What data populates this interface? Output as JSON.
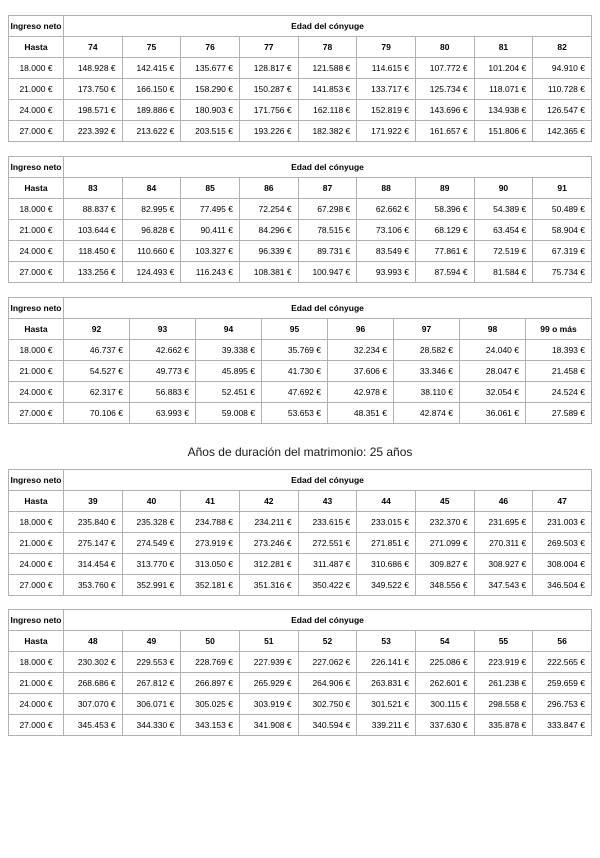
{
  "heading": {
    "text": "Años de duración del matrimonio: 25 años"
  },
  "table_labels": {
    "income_col_header": "Ingreso neto",
    "age_group_header": "Edad del cónyuge",
    "income_row_header": "Hasta"
  },
  "colors": {
    "border": "#b0b0b0",
    "text": "#000000",
    "background": "#ffffff"
  },
  "tables": [
    {
      "id": "ages-74-82",
      "ages": [
        "74",
        "75",
        "76",
        "77",
        "78",
        "79",
        "80",
        "81",
        "82"
      ],
      "rows": [
        {
          "income": "18.000 €",
          "values": [
            "148.928 €",
            "142.415 €",
            "135.677 €",
            "128.817 €",
            "121.588 €",
            "114.615 €",
            "107.772 €",
            "101.204 €",
            "94.910 €"
          ]
        },
        {
          "income": "21.000 €",
          "values": [
            "173.750 €",
            "166.150 €",
            "158.290 €",
            "150.287 €",
            "141.853 €",
            "133.717 €",
            "125.734 €",
            "118.071 €",
            "110.728 €"
          ]
        },
        {
          "income": "24.000 €",
          "values": [
            "198.571 €",
            "189.886 €",
            "180.903 €",
            "171.756 €",
            "162.118 €",
            "152.819 €",
            "143.696 €",
            "134.938 €",
            "126.547 €"
          ]
        },
        {
          "income": "27.000 €",
          "values": [
            "223.392 €",
            "213.622 €",
            "203.515 €",
            "193.226 €",
            "182.382 €",
            "171.922 €",
            "161.657 €",
            "151.806 €",
            "142.365 €"
          ]
        }
      ]
    },
    {
      "id": "ages-83-91",
      "ages": [
        "83",
        "84",
        "85",
        "86",
        "87",
        "88",
        "89",
        "90",
        "91"
      ],
      "rows": [
        {
          "income": "18.000 €",
          "values": [
            "88.837 €",
            "82.995 €",
            "77.495 €",
            "72.254 €",
            "67.298 €",
            "62.662 €",
            "58.396 €",
            "54.389 €",
            "50.489 €"
          ]
        },
        {
          "income": "21.000 €",
          "values": [
            "103.644 €",
            "96.828 €",
            "90.411 €",
            "84.296 €",
            "78.515 €",
            "73.106 €",
            "68.129 €",
            "63.454 €",
            "58.904 €"
          ]
        },
        {
          "income": "24.000 €",
          "values": [
            "118.450 €",
            "110.660 €",
            "103.327 €",
            "96.339 €",
            "89.731 €",
            "83.549 €",
            "77.861 €",
            "72.519 €",
            "67.319 €"
          ]
        },
        {
          "income": "27.000 €",
          "values": [
            "133.256 €",
            "124.493 €",
            "116.243 €",
            "108.381 €",
            "100.947 €",
            "93.993 €",
            "87.594 €",
            "81.584 €",
            "75.734 €"
          ]
        }
      ]
    },
    {
      "id": "ages-92-99",
      "ages": [
        "92",
        "93",
        "94",
        "95",
        "96",
        "97",
        "98",
        "99 o más"
      ],
      "rows": [
        {
          "income": "18.000 €",
          "values": [
            "46.737 €",
            "42.662 €",
            "39.338 €",
            "35.769 €",
            "32.234 €",
            "28.582 €",
            "24.040 €",
            "18.393 €"
          ]
        },
        {
          "income": "21.000 €",
          "values": [
            "54.527 €",
            "49.773 €",
            "45.895 €",
            "41.730 €",
            "37.606 €",
            "33.346 €",
            "28.047 €",
            "21.458 €"
          ]
        },
        {
          "income": "24.000 €",
          "values": [
            "62.317 €",
            "56.883 €",
            "52.451 €",
            "47.692 €",
            "42.978 €",
            "38.110 €",
            "32.054 €",
            "24.524 €"
          ]
        },
        {
          "income": "27.000 €",
          "values": [
            "70.106 €",
            "63.993 €",
            "59.008 €",
            "53.653 €",
            "48.351 €",
            "42.874 €",
            "36.061 €",
            "27.589 €"
          ]
        }
      ]
    },
    {
      "id": "ages-39-47",
      "ages": [
        "39",
        "40",
        "41",
        "42",
        "43",
        "44",
        "45",
        "46",
        "47"
      ],
      "rows": [
        {
          "income": "18.000 €",
          "values": [
            "235.840 €",
            "235.328 €",
            "234.788 €",
            "234.211 €",
            "233.615 €",
            "233.015 €",
            "232.370 €",
            "231.695 €",
            "231.003 €"
          ]
        },
        {
          "income": "21.000 €",
          "values": [
            "275.147 €",
            "274.549 €",
            "273.919 €",
            "273.246 €",
            "272.551 €",
            "271.851 €",
            "271.099 €",
            "270.311 €",
            "269.503 €"
          ]
        },
        {
          "income": "24.000 €",
          "values": [
            "314.454 €",
            "313.770 €",
            "313.050 €",
            "312.281 €",
            "311.487 €",
            "310.686 €",
            "309.827 €",
            "308.927 €",
            "308.004 €"
          ]
        },
        {
          "income": "27.000 €",
          "values": [
            "353.760 €",
            "352.991 €",
            "352.181 €",
            "351.316 €",
            "350.422 €",
            "349.522 €",
            "348.556 €",
            "347.543 €",
            "346.504 €"
          ]
        }
      ]
    },
    {
      "id": "ages-48-56",
      "ages": [
        "48",
        "49",
        "50",
        "51",
        "52",
        "53",
        "54",
        "55",
        "56"
      ],
      "rows": [
        {
          "income": "18.000 €",
          "values": [
            "230.302 €",
            "229.553 €",
            "228.769 €",
            "227.939 €",
            "227.062 €",
            "226.141 €",
            "225.086 €",
            "223.919 €",
            "222.565 €"
          ]
        },
        {
          "income": "21.000 €",
          "values": [
            "268.686 €",
            "267.812 €",
            "266.897 €",
            "265.929 €",
            "264.906 €",
            "263.831 €",
            "262.601 €",
            "261.238 €",
            "259.659 €"
          ]
        },
        {
          "income": "24.000 €",
          "values": [
            "307.070 €",
            "306.071 €",
            "305.025 €",
            "303.919 €",
            "302.750 €",
            "301.521 €",
            "300.115 €",
            "298.558 €",
            "296.753 €"
          ]
        },
        {
          "income": "27.000 €",
          "values": [
            "345.453 €",
            "344.330 €",
            "343.153 €",
            "341.908 €",
            "340.594 €",
            "339.211 €",
            "337.630 €",
            "335.878 €",
            "333.847 €"
          ]
        }
      ]
    }
  ]
}
